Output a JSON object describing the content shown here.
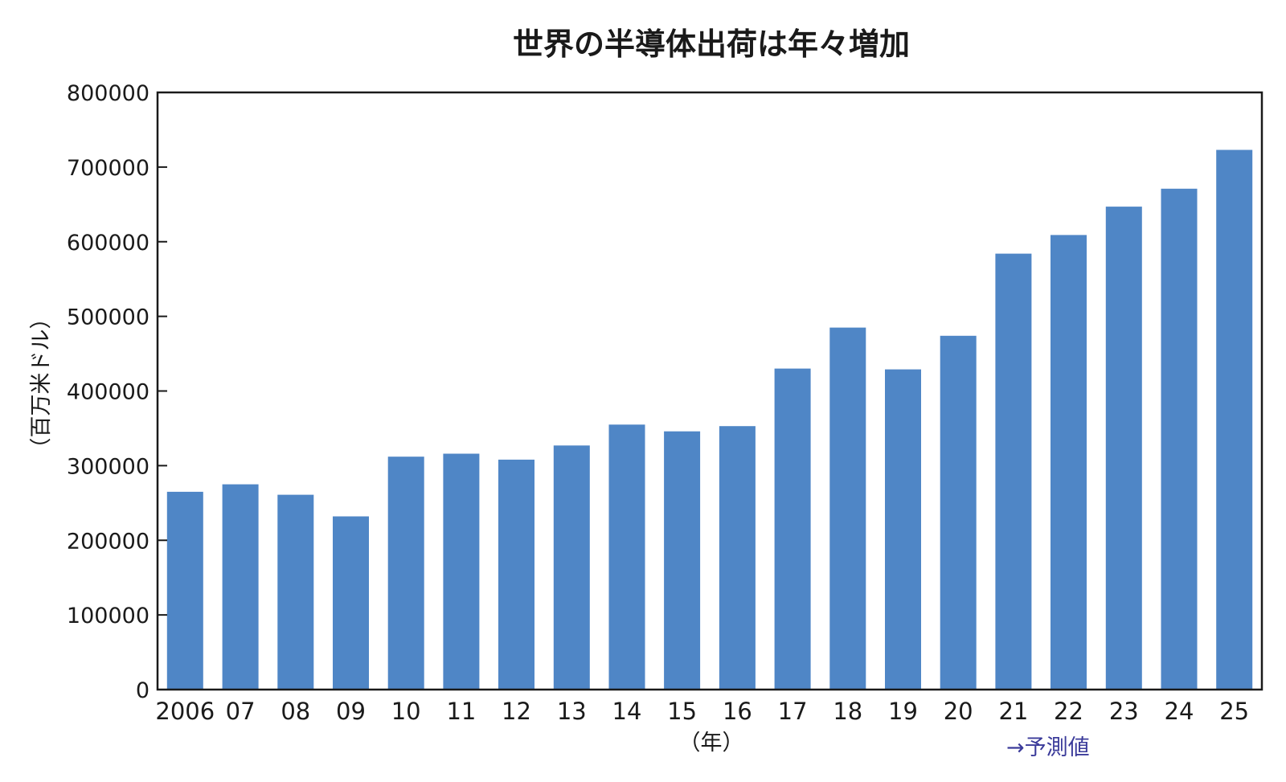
{
  "chart_data": {
    "type": "bar",
    "title": "世界の半導体出荷は年々増加",
    "ylabel": "（百万米ドル）",
    "xlabel": "（年）",
    "annotation": "→予測値",
    "categories": [
      "2006",
      "07",
      "08",
      "09",
      "10",
      "11",
      "12",
      "13",
      "14",
      "15",
      "16",
      "17",
      "18",
      "19",
      "20",
      "21",
      "22",
      "23",
      "24",
      "25"
    ],
    "values": [
      265000,
      275000,
      261000,
      232000,
      312000,
      316000,
      308000,
      327000,
      355000,
      346000,
      353000,
      430000,
      485000,
      429000,
      474000,
      584000,
      609000,
      647000,
      671000,
      723000
    ],
    "ylim": [
      0,
      800000
    ],
    "yticks": [
      "0",
      "100000",
      "200000",
      "300000",
      "400000",
      "500000",
      "600000",
      "700000",
      "800000"
    ],
    "grid": false,
    "colors": {
      "bar": "#4f86c6",
      "axis": "#1a1a1a",
      "text": "#1a1a1a",
      "annotation": "#3b3b9a"
    }
  }
}
